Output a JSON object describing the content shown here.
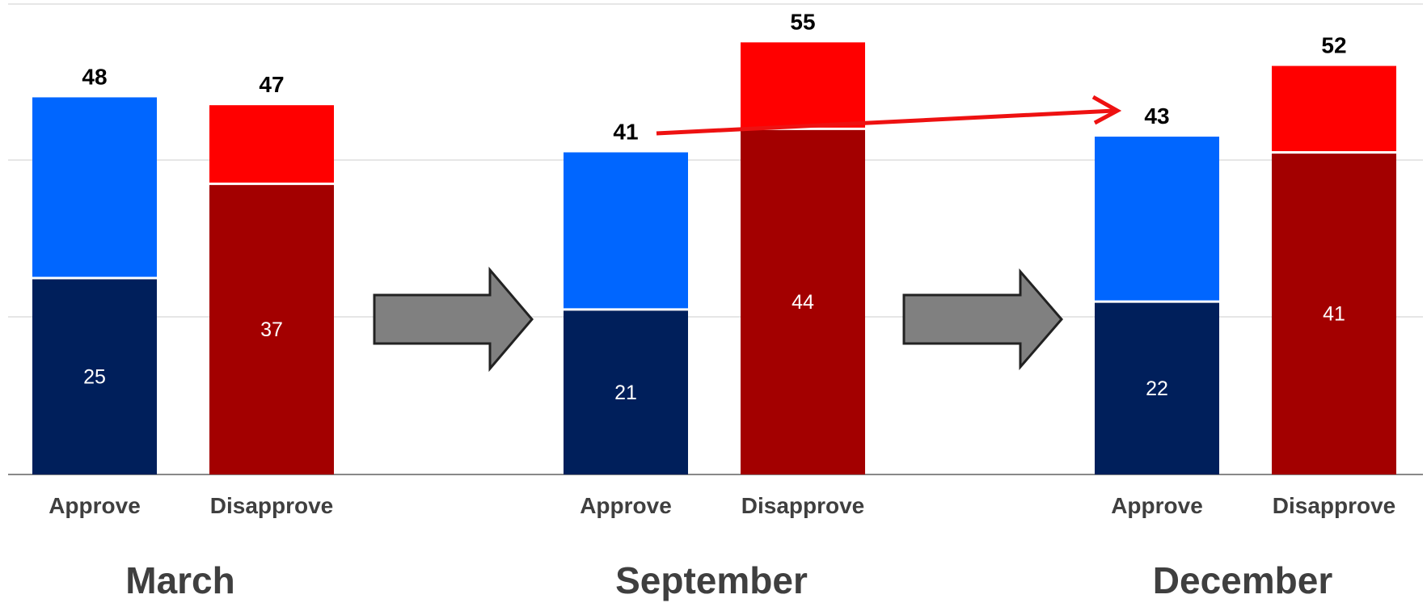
{
  "chart_data": {
    "type": "bar",
    "stacked": true,
    "groups": [
      "March",
      "September",
      "December"
    ],
    "categories": [
      "Approve",
      "Disapprove"
    ],
    "ylim": [
      0,
      60
    ],
    "grid": true,
    "legend": "none",
    "bars": [
      {
        "group": "March",
        "category": "Approve",
        "inner": 25,
        "total": 48
      },
      {
        "group": "March",
        "category": "Disapprove",
        "inner": 37,
        "total": 47
      },
      {
        "group": "September",
        "category": "Approve",
        "inner": 21,
        "total": 41
      },
      {
        "group": "September",
        "category": "Disapprove",
        "inner": 44,
        "total": 55
      },
      {
        "group": "December",
        "category": "Approve",
        "inner": 22,
        "total": 43
      },
      {
        "group": "December",
        "category": "Disapprove",
        "inner": 41,
        "total": 52
      }
    ],
    "colors": {
      "approve_strong": "#001f5b",
      "approve_weak": "#0066ff",
      "disapprove_strong": "#a30000",
      "disapprove_weak": "#ff0000",
      "transition_arrow": "#808080",
      "trend_arrow": "#ee1111"
    },
    "annotations": [
      "gray-arrow March to September",
      "gray-arrow September to December",
      "red trend arrow from September Approve to December Approve"
    ]
  }
}
